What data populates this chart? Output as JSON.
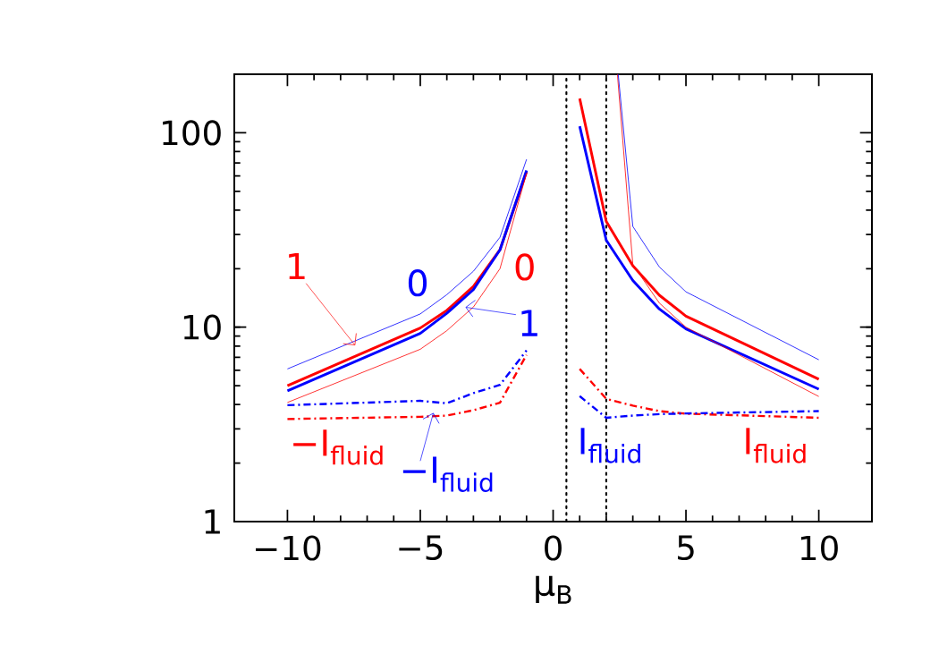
{
  "chart_data": {
    "type": "line",
    "xlabel": "μ$_{B}$",
    "log": "y",
    "xlim": [
      -12,
      12
    ],
    "ylim": [
      1,
      200
    ],
    "xticks": [
      {
        "value": -10,
        "label": "−10"
      },
      {
        "value": -5,
        "label": "−5"
      },
      0,
      5,
      10
    ],
    "yticks": [
      1,
      10,
      100
    ],
    "ref_lines": [
      {
        "axis": "x",
        "value": 0.5,
        "color": "#000000",
        "line_style": "dotted"
      },
      {
        "axis": "x",
        "value": 2,
        "color": "#000000",
        "line_style": "dotted"
      }
    ],
    "annotations": [
      {
        "text": "1",
        "x": -7.2,
        "y": 7.3
      },
      {
        "text": "1",
        "x": -3.7,
        "y": 12.9
      },
      "0",
      "0",
      "−I$_{fluid}$",
      {
        "text": "−I$_{fluid}$",
        "x": -4.4,
        "y": 4.1
      },
      "I$_{fluid}$",
      "I$_{fluid}$"
    ],
    "series": [
      {
        "color": "#ff0000",
        "line_style": "solid",
        "x": [
          -10,
          -5,
          -4,
          -3,
          -2,
          -1,
          0,
          1,
          2,
          3,
          4,
          5,
          10
        ],
        "values": [
          5.0,
          9.9,
          12.2,
          16.2,
          25,
          63,
          null,
          150,
          35,
          20.7,
          14.6,
          11.4,
          5.4
        ]
      },
      {
        "color": "#0000ff",
        "line_style": "solid",
        "x": [
          -10,
          -5,
          -4,
          -3,
          -2,
          -1,
          0,
          1,
          2,
          3,
          4,
          5,
          10
        ],
        "values": [
          4.7,
          9.3,
          11.8,
          15.6,
          25,
          64,
          null,
          108,
          28,
          17.4,
          12.4,
          9.8,
          4.8
        ]
      },
      {
        "color": "#ff0000",
        "line_style": "solid",
        "x": [
          -10,
          -5,
          -4,
          -3,
          -2,
          -1,
          0,
          2.42,
          3,
          4,
          5,
          10
        ],
        "values": [
          4.1,
          7.7,
          9.6,
          12.7,
          20,
          62,
          null,
          200,
          21,
          13.3,
          10,
          4.4
        ]
      },
      {
        "color": "#0000ff",
        "line_style": "solid",
        "x": [
          -10,
          -5,
          -4,
          -3,
          -2,
          -1,
          0,
          2.45,
          3,
          4,
          5,
          10
        ],
        "values": [
          6.1,
          11.7,
          14.7,
          19.4,
          29,
          73,
          null,
          200,
          33,
          20.4,
          15.2,
          6.8
        ]
      },
      {
        "color": "#ff0000",
        "line_style": "dashdot",
        "x": [
          -10,
          -5,
          -4,
          -3,
          -2,
          -1
        ],
        "values": [
          3.37,
          3.46,
          3.51,
          3.74,
          4.09,
          7.2
        ]
      },
      {
        "color": "#0000ff",
        "line_style": "dashdot",
        "x": [
          -10,
          -5,
          -4,
          -3,
          -2,
          -1
        ],
        "values": [
          3.97,
          4.18,
          4.06,
          4.58,
          5.05,
          7.6
        ]
      },
      {
        "color": "#ff0000",
        "line_style": "dashdot",
        "x": [
          1,
          2,
          3,
          4,
          5,
          10
        ],
        "values": [
          6.1,
          4.28,
          3.95,
          3.7,
          3.59,
          3.42
        ]
      },
      {
        "color": "#0000ff",
        "line_style": "dashdot",
        "x": [
          1,
          2,
          3,
          4,
          5,
          10
        ],
        "values": [
          4.42,
          3.42,
          3.51,
          3.57,
          3.6,
          3.7
        ]
      }
    ]
  }
}
